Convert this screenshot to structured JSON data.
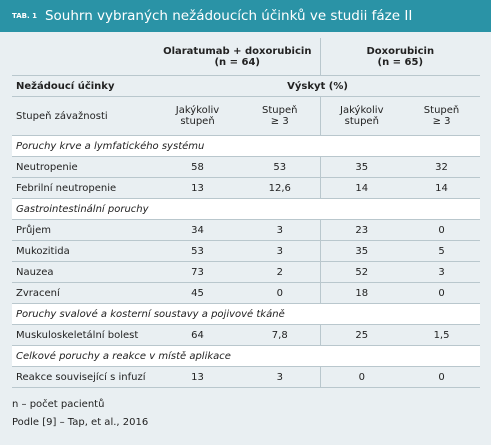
{
  "header": {
    "tag": "TAB. 1",
    "title": "Souhrn vybraných nežádoucích účinků ve studii fáze II"
  },
  "table": {
    "groups": [
      {
        "name": "Olaratumab + doxorubicin",
        "n": "(n = 64)"
      },
      {
        "name": "Doxorubicin",
        "n": "(n = 65)"
      }
    ],
    "row_header": "Nežádoucí účinky",
    "span_header": "Výskyt (%)",
    "grade_header": "Stupeň závažnosti",
    "subheaders": [
      [
        "Jakýkoliv",
        "stupeň"
      ],
      [
        "Stupeň",
        "≥ 3"
      ],
      [
        "Jakýkoliv",
        "stupeň"
      ],
      [
        "Stupeň",
        "≥ 3"
      ]
    ],
    "sections": [
      {
        "title": "Poruchy krve a lymfatického systému",
        "rows": [
          [
            "Neutropenie",
            "58",
            "53",
            "35",
            "32"
          ],
          [
            "Febrilní neutropenie",
            "13",
            "12,6",
            "14",
            "14"
          ]
        ]
      },
      {
        "title": "Gastrointestinální poruchy",
        "rows": [
          [
            "Průjem",
            "34",
            "3",
            "23",
            "0"
          ],
          [
            "Mukozitida",
            "53",
            "3",
            "35",
            "5"
          ],
          [
            "Nauzea",
            "73",
            "2",
            "52",
            "3"
          ],
          [
            "Zvracení",
            "45",
            "0",
            "18",
            "0"
          ]
        ]
      },
      {
        "title": "Poruchy svalové a kosterní soustavy a pojivové tkáně",
        "rows": [
          [
            "Muskuloskeletální bolest",
            "64",
            "7,8",
            "25",
            "1,5"
          ]
        ]
      },
      {
        "title": "Celkové poruchy a reakce v místě aplikace",
        "rows": [
          [
            "Reakce související s infuzí",
            "13",
            "3",
            "0",
            "0"
          ]
        ]
      }
    ]
  },
  "footnotes": [
    "n – počet pacientů",
    "Podle [9] – Tap, et al., 2016"
  ]
}
